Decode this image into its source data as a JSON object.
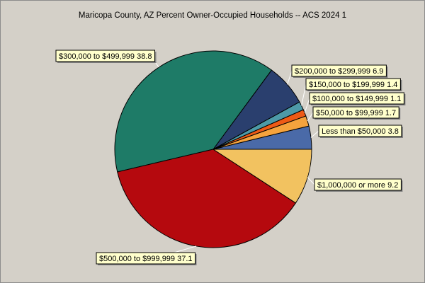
{
  "chart_data": {
    "type": "pie",
    "title": "Maricopa County, AZ Percent Owner-Occupied Households -- ACS 2024 1",
    "slices": [
      {
        "label": "Less than $50,000",
        "value": 3.8,
        "color": "#4a6aa8"
      },
      {
        "label": "$50,000 to $99,999",
        "value": 1.7,
        "color": "#f5a33d"
      },
      {
        "label": "$100,000 to $149,999",
        "value": 1.1,
        "color": "#ee5a16"
      },
      {
        "label": "$150,000 to $199,999",
        "value": 1.4,
        "color": "#4d9aa8"
      },
      {
        "label": "$200,000 to $299,999",
        "value": 6.9,
        "color": "#2a3f6e"
      },
      {
        "label": "$300,000 to $499,999",
        "value": 38.8,
        "color": "#1e7b67"
      },
      {
        "label": "$500,000 to $999,999",
        "value": 37.1,
        "color": "#b5090e"
      },
      {
        "label": "$1,000,000 or more",
        "value": 9.2,
        "color": "#f2c260"
      }
    ],
    "start": "east",
    "direction": "counterclockwise",
    "legend": "none"
  }
}
